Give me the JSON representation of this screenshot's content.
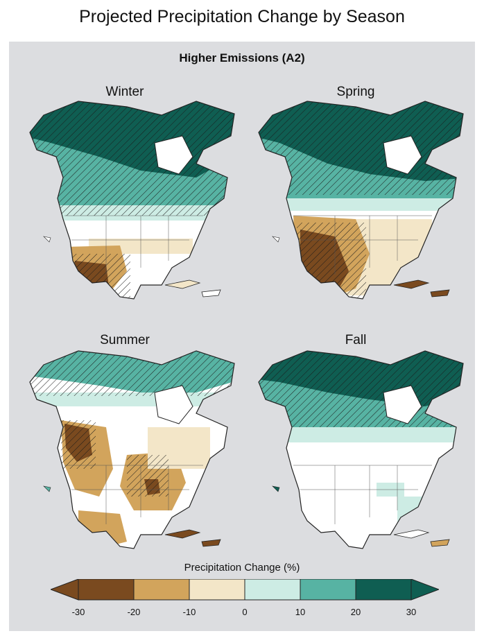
{
  "title": "Projected Precipitation Change by Season",
  "subtitle": "Higher Emissions (A2)",
  "panels": [
    {
      "label": "Winter"
    },
    {
      "label": "Spring"
    },
    {
      "label": "Summer"
    },
    {
      "label": "Fall"
    }
  ],
  "legend": {
    "title": "Precipitation Change (%)",
    "ticks": [
      "-30",
      "-20",
      "-10",
      "0",
      "10",
      "20",
      "30"
    ],
    "bins": [
      {
        "range": [
          -30,
          -20
        ],
        "color": "#7a4a1f"
      },
      {
        "range": [
          -20,
          -10
        ],
        "color": "#d2a45c"
      },
      {
        "range": [
          -10,
          0
        ],
        "color": "#f3e6c8"
      },
      {
        "range": [
          0,
          10
        ],
        "color": "#cdece4"
      },
      {
        "range": [
          10,
          20
        ],
        "color": "#57b3a3"
      },
      {
        "range": [
          20,
          30
        ],
        "color": "#0f5e52"
      }
    ],
    "over_color": "#0f5e52",
    "under_color": "#7a4a1f"
  },
  "colors": {
    "background_panel": "#dcdde0",
    "land_neutral": "#ffffff",
    "hatch": "#1b1b1b"
  }
}
